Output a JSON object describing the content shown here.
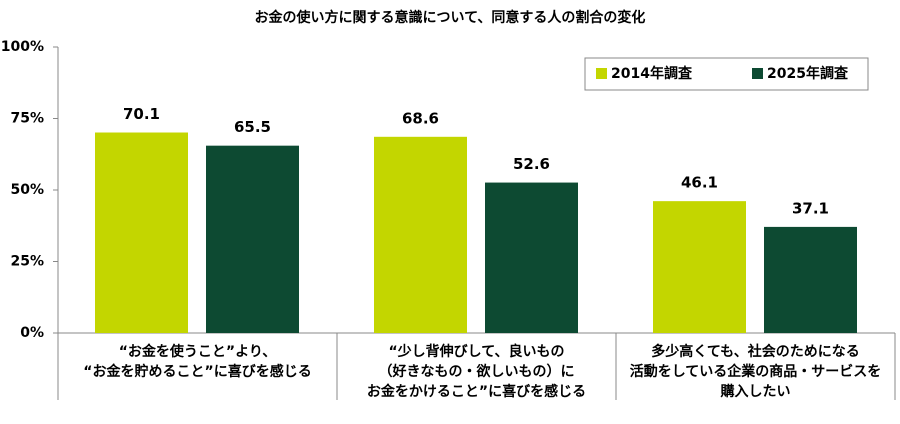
{
  "chart_data": {
    "type": "bar",
    "title": "お金の使い方に関する意識について、同意する人の割合の変化",
    "categories": [
      "“お金を使うこと”より、\n“お金を貯めること”に喜びを感じる",
      "“少し背伸びして、良いもの\n（好きなもの・欲しいもの）に\nお金をかけること”に喜びを感じる",
      "多少高くても、社会のためになる\n活動をしている企業の商品・サービスを\n購入したい"
    ],
    "series": [
      {
        "name": "2014年調査",
        "color": "#c3d600",
        "values": [
          70.1,
          68.6,
          46.1
        ]
      },
      {
        "name": "2025年調査",
        "color": "#0d4a32",
        "values": [
          65.5,
          52.6,
          37.1
        ]
      }
    ],
    "ylim": [
      0,
      100
    ],
    "yticks": [
      {
        "value": 0,
        "label": "0%"
      },
      {
        "value": 25,
        "label": "25%"
      },
      {
        "value": 50,
        "label": "50%"
      },
      {
        "value": 75,
        "label": "75%"
      },
      {
        "value": 100,
        "label": "100%"
      }
    ],
    "grid": false,
    "legend": "top-right"
  }
}
